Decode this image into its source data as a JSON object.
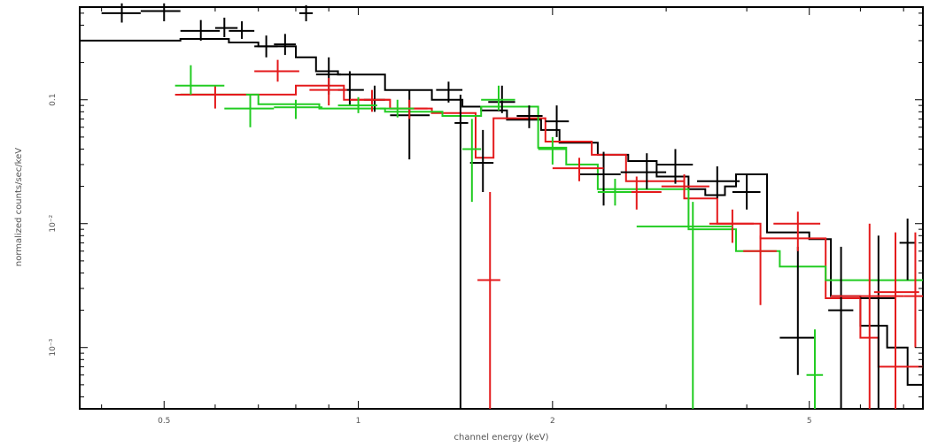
{
  "chart_data": {
    "type": "scatter",
    "xlabel": "channel energy (keV)",
    "ylabel": "normalized counts/sec/keV",
    "x_scale": "log",
    "y_scale": "log",
    "xlim": [
      0.37,
      7.5
    ],
    "ylim": [
      0.00032,
      0.56
    ],
    "x_ticks": [
      0.5,
      1,
      2,
      5
    ],
    "x_tick_labels": [
      "0.5",
      "1",
      "2",
      "5"
    ],
    "y_ticks": [
      0.001,
      0.01,
      0.1
    ],
    "y_tick_labels": [
      "10⁻³",
      "10⁻²",
      "0.1"
    ],
    "grid": false,
    "series": [
      {
        "color": "#000000",
        "points": [
          {
            "x": 0.43,
            "xlo": 0.4,
            "xhi": 0.46,
            "y": 0.5,
            "ylo": 0.42,
            "yhi": 0.6
          },
          {
            "x": 0.5,
            "xlo": 0.46,
            "xhi": 0.53,
            "y": 0.52,
            "ylo": 0.43,
            "yhi": 0.6
          },
          {
            "x": 0.57,
            "xlo": 0.53,
            "xhi": 0.61,
            "y": 0.36,
            "ylo": 0.3,
            "yhi": 0.44
          },
          {
            "x": 0.62,
            "xlo": 0.6,
            "xhi": 0.65,
            "y": 0.38,
            "ylo": 0.32,
            "yhi": 0.46
          },
          {
            "x": 0.66,
            "xlo": 0.63,
            "xhi": 0.69,
            "y": 0.36,
            "ylo": 0.31,
            "yhi": 0.43
          },
          {
            "x": 0.72,
            "xlo": 0.69,
            "xhi": 0.75,
            "y": 0.27,
            "ylo": 0.22,
            "yhi": 0.33
          },
          {
            "x": 0.77,
            "xlo": 0.74,
            "xhi": 0.8,
            "y": 0.28,
            "ylo": 0.23,
            "yhi": 0.34
          },
          {
            "x": 0.83,
            "xlo": 0.81,
            "xhi": 0.85,
            "y": 0.5,
            "ylo": 0.43,
            "yhi": 0.58
          },
          {
            "x": 0.9,
            "xlo": 0.86,
            "xhi": 0.94,
            "y": 0.16,
            "ylo": 0.11,
            "yhi": 0.22
          },
          {
            "x": 0.97,
            "xlo": 0.93,
            "xhi": 1.02,
            "y": 0.12,
            "ylo": 0.09,
            "yhi": 0.17
          },
          {
            "x": 1.06,
            "xlo": 1.02,
            "xhi": 1.1,
            "y": 0.1,
            "ylo": 0.08,
            "yhi": 0.13
          },
          {
            "x": 1.2,
            "xlo": 1.12,
            "xhi": 1.29,
            "y": 0.075,
            "ylo": 0.033,
            "yhi": 0.12
          },
          {
            "x": 1.38,
            "xlo": 1.32,
            "xhi": 1.45,
            "y": 0.12,
            "ylo": 0.095,
            "yhi": 0.14
          },
          {
            "x": 1.44,
            "xlo": 1.41,
            "xhi": 1.48,
            "y": 0.065,
            "ylo": 0.00032,
            "yhi": 0.11
          },
          {
            "x": 1.56,
            "xlo": 1.49,
            "xhi": 1.62,
            "y": 0.031,
            "ylo": 0.018,
            "yhi": 0.057
          },
          {
            "x": 1.67,
            "xlo": 1.59,
            "xhi": 1.75,
            "y": 0.096,
            "ylo": 0.078,
            "yhi": 0.13
          },
          {
            "x": 1.84,
            "xlo": 1.76,
            "xhi": 1.93,
            "y": 0.074,
            "ylo": 0.059,
            "yhi": 0.09
          },
          {
            "x": 2.03,
            "xlo": 1.95,
            "xhi": 2.12,
            "y": 0.067,
            "ylo": 0.05,
            "yhi": 0.09
          },
          {
            "x": 2.4,
            "xlo": 2.2,
            "xhi": 2.55,
            "y": 0.025,
            "ylo": 0.014,
            "yhi": 0.038
          },
          {
            "x": 2.8,
            "xlo": 2.55,
            "xhi": 3.0,
            "y": 0.026,
            "ylo": 0.019,
            "yhi": 0.037
          },
          {
            "x": 3.1,
            "xlo": 2.9,
            "xhi": 3.3,
            "y": 0.03,
            "ylo": 0.021,
            "yhi": 0.04
          },
          {
            "x": 3.6,
            "xlo": 3.35,
            "xhi": 3.9,
            "y": 0.022,
            "ylo": 0.016,
            "yhi": 0.029
          },
          {
            "x": 4.0,
            "xlo": 3.8,
            "xhi": 4.2,
            "y": 0.018,
            "ylo": 0.013,
            "yhi": 0.025
          },
          {
            "x": 4.8,
            "xlo": 4.5,
            "xhi": 5.1,
            "y": 0.0012,
            "ylo": 0.0006,
            "yhi": 0.0065
          },
          {
            "x": 5.6,
            "xlo": 5.35,
            "xhi": 5.85,
            "y": 0.002,
            "ylo": 0.00032,
            "yhi": 0.0065
          },
          {
            "x": 6.4,
            "xlo": 6.0,
            "xhi": 6.8,
            "y": 0.0025,
            "ylo": 0.00032,
            "yhi": 0.008
          },
          {
            "x": 7.1,
            "xlo": 6.9,
            "xhi": 7.3,
            "y": 0.007,
            "ylo": 0.0035,
            "yhi": 0.011
          }
        ],
        "model": {
          "edges": [
            0.37,
            0.53,
            0.63,
            0.7,
            0.8,
            0.86,
            0.93,
            1.1,
            1.3,
            1.45,
            1.55,
            1.7,
            1.92,
            2.05,
            2.35,
            2.62,
            2.9,
            3.25,
            3.45,
            3.7,
            3.85,
            4.3,
            5.0,
            5.4,
            6.0,
            6.6,
            7.1,
            7.5
          ],
          "values": [
            0.3,
            0.31,
            0.29,
            0.27,
            0.22,
            0.17,
            0.16,
            0.12,
            0.1,
            0.088,
            0.082,
            0.069,
            0.057,
            0.045,
            0.036,
            0.032,
            0.024,
            0.019,
            0.017,
            0.02,
            0.025,
            0.0085,
            0.0075,
            0.0026,
            0.0015,
            0.001,
            0.0005
          ]
        }
      },
      {
        "color": "#e41a1c",
        "points": [
          {
            "x": 0.6,
            "xlo": 0.52,
            "xhi": 0.67,
            "y": 0.11,
            "ylo": 0.085,
            "yhi": 0.13
          },
          {
            "x": 0.75,
            "xlo": 0.69,
            "xhi": 0.81,
            "y": 0.17,
            "ylo": 0.14,
            "yhi": 0.21
          },
          {
            "x": 0.9,
            "xlo": 0.84,
            "xhi": 0.96,
            "y": 0.12,
            "ylo": 0.09,
            "yhi": 0.15
          },
          {
            "x": 1.05,
            "xlo": 0.97,
            "xhi": 1.12,
            "y": 0.1,
            "ylo": 0.08,
            "yhi": 0.12
          },
          {
            "x": 1.2,
            "xlo": 1.12,
            "xhi": 1.28,
            "y": 0.085,
            "ylo": 0.07,
            "yhi": 0.1
          },
          {
            "x": 1.6,
            "xlo": 1.53,
            "xhi": 1.66,
            "y": 0.0035,
            "ylo": 0.00032,
            "yhi": 0.018
          },
          {
            "x": 2.2,
            "xlo": 2.0,
            "xhi": 2.4,
            "y": 0.028,
            "ylo": 0.022,
            "yhi": 0.034
          },
          {
            "x": 2.7,
            "xlo": 2.5,
            "xhi": 2.95,
            "y": 0.018,
            "ylo": 0.013,
            "yhi": 0.024
          },
          {
            "x": 3.2,
            "xlo": 2.95,
            "xhi": 3.5,
            "y": 0.02,
            "ylo": 0.016,
            "yhi": 0.025
          },
          {
            "x": 3.8,
            "xlo": 3.5,
            "xhi": 4.1,
            "y": 0.01,
            "ylo": 0.007,
            "yhi": 0.013
          },
          {
            "x": 4.2,
            "xlo": 3.95,
            "xhi": 4.45,
            "y": 0.006,
            "ylo": 0.0022,
            "yhi": 0.008
          },
          {
            "x": 4.8,
            "xlo": 4.4,
            "xhi": 5.2,
            "y": 0.01,
            "ylo": 0.006,
            "yhi": 0.0125
          },
          {
            "x": 6.2,
            "xlo": 5.4,
            "xhi": 7.0,
            "y": 0.0026,
            "ylo": 0.00032,
            "yhi": 0.01
          },
          {
            "x": 6.8,
            "xlo": 6.3,
            "xhi": 7.4,
            "y": 0.0028,
            "ylo": 0.00032,
            "yhi": 0.0085
          },
          {
            "x": 7.3,
            "xlo": 7.0,
            "xhi": 7.5,
            "y": 0.0026,
            "ylo": 0.001,
            "yhi": 0.0085
          }
        ],
        "model": {
          "edges": [
            0.53,
            0.72,
            0.8,
            0.95,
            1.12,
            1.3,
            1.45,
            1.52,
            1.62,
            1.95,
            2.3,
            2.6,
            2.95,
            3.2,
            3.6,
            4.2,
            5.3,
            6.0,
            6.4,
            7.5
          ],
          "values": [
            0.11,
            0.11,
            0.13,
            0.1,
            0.085,
            0.078,
            0.078,
            0.034,
            0.071,
            0.046,
            0.036,
            0.022,
            0.022,
            0.016,
            0.01,
            0.0076,
            0.0025,
            0.0012,
            0.0007
          ]
        }
      },
      {
        "color": "#22cc22",
        "points": [
          {
            "x": 0.55,
            "xlo": 0.52,
            "xhi": 0.62,
            "y": 0.13,
            "ylo": 0.11,
            "yhi": 0.19
          },
          {
            "x": 0.68,
            "xlo": 0.62,
            "xhi": 0.74,
            "y": 0.085,
            "ylo": 0.06,
            "yhi": 0.11
          },
          {
            "x": 0.8,
            "xlo": 0.74,
            "xhi": 0.88,
            "y": 0.087,
            "ylo": 0.07,
            "yhi": 0.1
          },
          {
            "x": 1.0,
            "xlo": 0.93,
            "xhi": 1.07,
            "y": 0.09,
            "ylo": 0.078,
            "yhi": 0.105
          },
          {
            "x": 1.15,
            "xlo": 1.08,
            "xhi": 1.22,
            "y": 0.085,
            "ylo": 0.072,
            "yhi": 0.1
          },
          {
            "x": 1.5,
            "xlo": 1.45,
            "xhi": 1.55,
            "y": 0.04,
            "ylo": 0.015,
            "yhi": 0.07
          },
          {
            "x": 1.65,
            "xlo": 1.55,
            "xhi": 1.75,
            "y": 0.1,
            "ylo": 0.082,
            "yhi": 0.13
          },
          {
            "x": 2.0,
            "xlo": 1.9,
            "xhi": 2.1,
            "y": 0.04,
            "ylo": 0.03,
            "yhi": 0.05
          },
          {
            "x": 2.5,
            "xlo": 2.35,
            "xhi": 2.65,
            "y": 0.018,
            "ylo": 0.014,
            "yhi": 0.023
          },
          {
            "x": 3.3,
            "xlo": 2.7,
            "xhi": 3.8,
            "y": 0.0095,
            "ylo": 0.00032,
            "yhi": 0.015
          },
          {
            "x": 5.1,
            "xlo": 4.95,
            "xhi": 5.25,
            "y": 0.0006,
            "ylo": 0.00032,
            "yhi": 0.0014
          }
        ],
        "model": {
          "edges": [
            0.53,
            0.7,
            0.87,
            1.1,
            1.35,
            1.55,
            1.9,
            2.1,
            2.35,
            2.65,
            3.25,
            3.85,
            4.5,
            5.3,
            7.5
          ],
          "values": [
            0.11,
            0.092,
            0.085,
            0.08,
            0.074,
            0.088,
            0.041,
            0.03,
            0.019,
            0.019,
            0.009,
            0.006,
            0.0045,
            0.0035
          ]
        }
      }
    ]
  }
}
